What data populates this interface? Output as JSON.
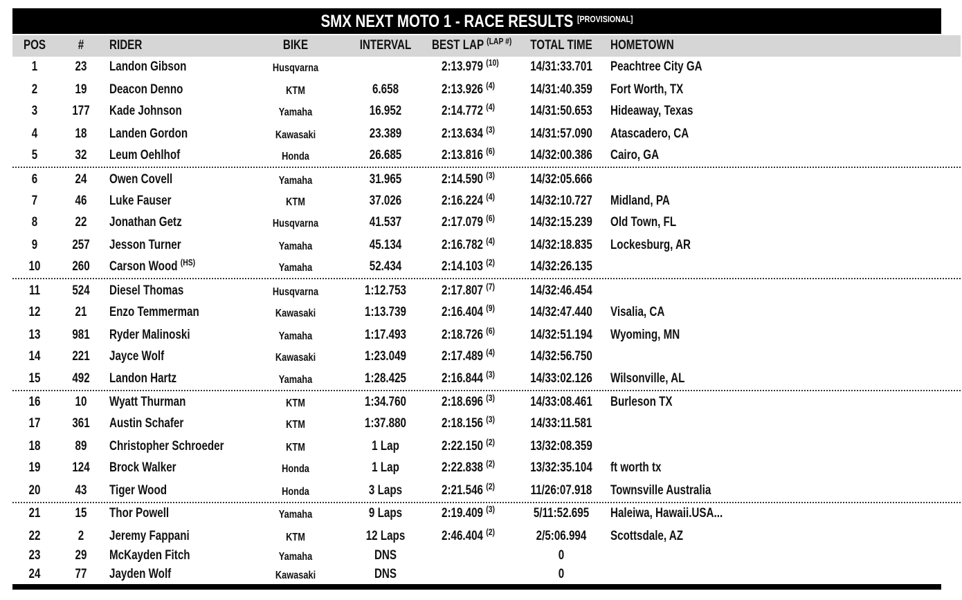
{
  "header": {
    "title": "SMX NEXT MOTO 1 - RACE RESULTS",
    "tag": "[PROVISIONAL]"
  },
  "table": {
    "columns": {
      "pos": "POS",
      "num": "#",
      "rider": "RIDER",
      "bike": "BIKE",
      "interval": "INTERVAL",
      "best_lap": "BEST LAP",
      "lap": "(LAP #)",
      "total": "TOTAL TIME",
      "hometown": "HOMETOWN"
    },
    "rows": [
      {
        "pos": 1,
        "num": 23,
        "rider": "Landon Gibson",
        "bike": "Husqvarna",
        "best_lap": "2:13.979",
        "lap": "(10)",
        "total": "14/31:33.701",
        "hometown": "Peachtree City GA"
      },
      {
        "pos": 2,
        "num": 19,
        "rider": "Deacon Denno",
        "bike": "KTM",
        "interval": "6.658",
        "best_lap": "2:13.926",
        "lap": "(4)",
        "total": "14/31:40.359",
        "hometown": "Fort Worth, TX"
      },
      {
        "pos": 3,
        "num": 177,
        "rider": "Kade Johnson",
        "bike": "Yamaha",
        "interval": "16.952",
        "best_lap": "2:14.772",
        "lap": "(4)",
        "total": "14/31:50.653",
        "hometown": "Hideaway, Texas"
      },
      {
        "pos": 4,
        "num": 18,
        "rider": "Landen Gordon",
        "bike": "Kawasaki",
        "interval": "23.389",
        "best_lap": "2:13.634",
        "lap": "(3)",
        "total": "14/31:57.090",
        "hometown": "Atascadero, CA"
      },
      {
        "pos": 5,
        "num": 32,
        "rider": "Leum Oehlhof",
        "bike": "Honda",
        "interval": "26.685",
        "best_lap": "2:13.816",
        "lap": "(6)",
        "total": "14/32:00.386",
        "hometown": "Cairo, GA"
      },
      {
        "pos": 6,
        "num": 24,
        "rider": "Owen Covell",
        "bike": "Yamaha",
        "interval": "31.965",
        "best_lap": "2:14.590",
        "lap": "(3)",
        "total": "14/32:05.666"
      },
      {
        "pos": 7,
        "num": 46,
        "rider": "Luke Fauser",
        "bike": "KTM",
        "interval": "37.026",
        "best_lap": "2:16.224",
        "lap": "(4)",
        "total": "14/32:10.727",
        "hometown": "Midland, PA"
      },
      {
        "pos": 8,
        "num": 22,
        "rider": "Jonathan Getz",
        "bike": "Husqvarna",
        "interval": "41.537",
        "best_lap": "2:17.079",
        "lap": "(6)",
        "total": "14/32:15.239",
        "hometown": "Old Town, FL"
      },
      {
        "pos": 9,
        "num": 257,
        "rider": "Jesson Turner",
        "bike": "Yamaha",
        "interval": "45.134",
        "best_lap": "2:16.782",
        "lap": "(4)",
        "total": "14/32:18.835",
        "hometown": "Lockesburg, AR"
      },
      {
        "pos": 10,
        "num": 260,
        "rider": "Carson Wood",
        "rider_note": "(HS)",
        "bike": "Yamaha",
        "interval": "52.434",
        "best_lap": "2:14.103",
        "lap": "(2)",
        "total": "14/32:26.135"
      },
      {
        "pos": 11,
        "num": 524,
        "rider": "Diesel Thomas",
        "bike": "Husqvarna",
        "interval": "1:12.753",
        "best_lap": "2:17.807",
        "lap": "(7)",
        "total": "14/32:46.454"
      },
      {
        "pos": 12,
        "num": 21,
        "rider": "Enzo Temmerman",
        "bike": "Kawasaki",
        "interval": "1:13.739",
        "best_lap": "2:16.404",
        "lap": "(9)",
        "total": "14/32:47.440",
        "hometown": "Visalia, CA"
      },
      {
        "pos": 13,
        "num": 981,
        "rider": "Ryder Malinoski",
        "bike": "Yamaha",
        "interval": "1:17.493",
        "best_lap": "2:18.726",
        "lap": "(6)",
        "total": "14/32:51.194",
        "hometown": "Wyoming, MN"
      },
      {
        "pos": 14,
        "num": 221,
        "rider": "Jayce Wolf",
        "bike": "Kawasaki",
        "interval": "1:23.049",
        "best_lap": "2:17.489",
        "lap": "(4)",
        "total": "14/32:56.750"
      },
      {
        "pos": 15,
        "num": 492,
        "rider": "Landon Hartz",
        "bike": "Yamaha",
        "interval": "1:28.425",
        "best_lap": "2:16.844",
        "lap": "(3)",
        "total": "14/33:02.126",
        "hometown": "Wilsonville, AL"
      },
      {
        "pos": 16,
        "num": 10,
        "rider": "Wyatt Thurman",
        "bike": "KTM",
        "interval": "1:34.760",
        "best_lap": "2:18.696",
        "lap": "(3)",
        "total": "14/33:08.461",
        "hometown": "Burleson TX"
      },
      {
        "pos": 17,
        "num": 361,
        "rider": "Austin Schafer",
        "bike": "KTM",
        "interval": "1:37.880",
        "best_lap": "2:18.156",
        "lap": "(3)",
        "total": "14/33:11.581"
      },
      {
        "pos": 18,
        "num": 89,
        "rider": "Christopher Schroeder",
        "bike": "KTM",
        "interval": "1 Lap",
        "best_lap": "2:22.150",
        "lap": "(2)",
        "total": "13/32:08.359"
      },
      {
        "pos": 19,
        "num": 124,
        "rider": "Brock Walker",
        "bike": "Honda",
        "interval": "1 Lap",
        "best_lap": "2:22.838",
        "lap": "(2)",
        "total": "13/32:35.104",
        "hometown": "ft worth tx"
      },
      {
        "pos": 20,
        "num": 43,
        "rider": "Tiger Wood",
        "bike": "Honda",
        "interval": "3 Laps",
        "best_lap": "2:21.546",
        "lap": "(2)",
        "total": "11/26:07.918",
        "hometown": "Townsville Australia"
      },
      {
        "pos": 21,
        "num": 15,
        "rider": "Thor Powell",
        "bike": "Yamaha",
        "interval": "9 Laps",
        "best_lap": "2:19.409",
        "lap": "(3)",
        "total": "5/11:52.695",
        "hometown": "Haleiwa, Hawaii.USA..."
      },
      {
        "pos": 22,
        "num": 2,
        "rider": "Jeremy Fappani",
        "bike": "KTM",
        "interval": "12 Laps",
        "best_lap": "2:46.404",
        "lap": "(2)",
        "total": "2/5:06.994",
        "hometown": "Scottsdale, AZ"
      },
      {
        "pos": 23,
        "num": 29,
        "rider": "McKayden Fitch",
        "bike": "Yamaha",
        "interval": "DNS",
        "total": 0
      },
      {
        "pos": 24,
        "num": 77,
        "rider": "Jayden Wolf",
        "bike": "Kawasaki",
        "interval": "DNS",
        "total": 0
      }
    ]
  }
}
